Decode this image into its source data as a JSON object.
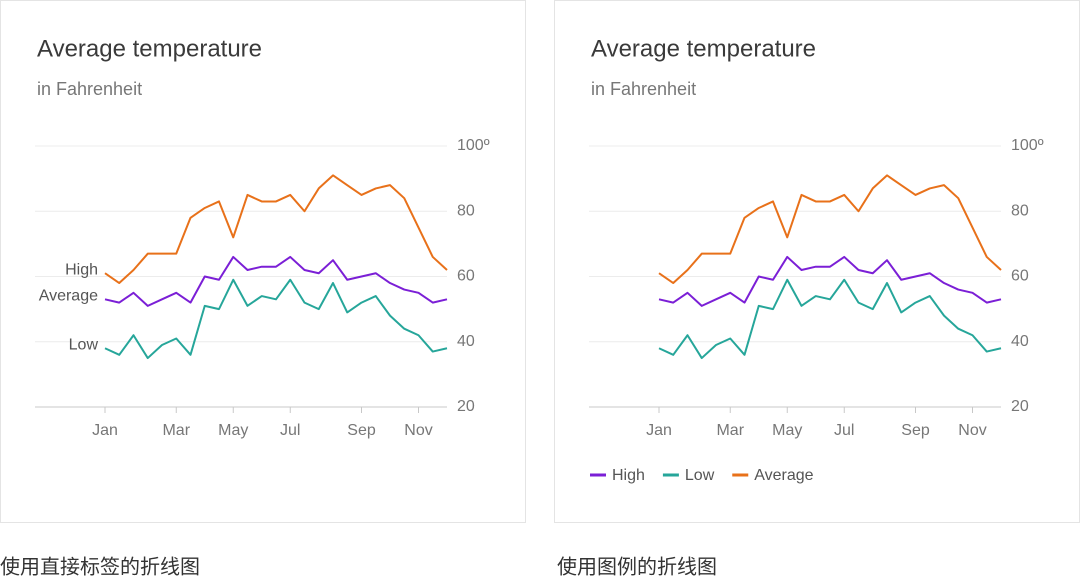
{
  "chart_data": [
    {
      "type": "line",
      "title": "Average temperature",
      "subtitle": "in Fahrenheit",
      "caption": "使用直接标签的折线图",
      "labeling": "direct",
      "categories": [
        "Jan",
        null,
        null,
        null,
        null,
        "Mar",
        null,
        null,
        null,
        "May",
        null,
        null,
        null,
        "Jul",
        null,
        null,
        null,
        null,
        "Sep",
        null,
        null,
        null,
        "Nov",
        null,
        null
      ],
      "series": [
        {
          "name": "High",
          "color": "#7b1fd6",
          "values": [
            53,
            52,
            55,
            51,
            53,
            55,
            52,
            60,
            59,
            66,
            62,
            63,
            63,
            66,
            62,
            61,
            65,
            59,
            60,
            61,
            58,
            56,
            55,
            52,
            53
          ]
        },
        {
          "name": "Average",
          "color": "#e8711a",
          "values": [
            61,
            58,
            62,
            67,
            67,
            67,
            78,
            81,
            83,
            72,
            85,
            83,
            83,
            85,
            80,
            87,
            91,
            88,
            85,
            87,
            88,
            84,
            75,
            66,
            62
          ]
        },
        {
          "name": "Low",
          "color": "#26a69a",
          "values": [
            38,
            36,
            42,
            35,
            39,
            41,
            36,
            51,
            50,
            59,
            51,
            54,
            53,
            59,
            52,
            50,
            58,
            49,
            52,
            54,
            48,
            44,
            42,
            37,
            38
          ]
        }
      ],
      "ylim": [
        20,
        100
      ],
      "yticks": [
        20,
        40,
        60,
        80,
        {
          "value": 100,
          "label": "100º"
        }
      ],
      "grid": true
    },
    {
      "type": "line",
      "title": "Average temperature",
      "subtitle": "in Fahrenheit",
      "caption": "使用图例的折线图",
      "labeling": "legend",
      "legend": "bottom",
      "categories": [
        "Jan",
        null,
        null,
        null,
        null,
        "Mar",
        null,
        null,
        null,
        "May",
        null,
        null,
        null,
        "Jul",
        null,
        null,
        null,
        null,
        "Sep",
        null,
        null,
        null,
        "Nov",
        null,
        null
      ],
      "series": [
        {
          "name": "High",
          "color": "#7b1fd6",
          "values": [
            53,
            52,
            55,
            51,
            53,
            55,
            52,
            60,
            59,
            66,
            62,
            63,
            63,
            66,
            62,
            61,
            65,
            59,
            60,
            61,
            58,
            56,
            55,
            52,
            53
          ]
        },
        {
          "name": "Low",
          "color": "#26a69a",
          "values": [
            38,
            36,
            42,
            35,
            39,
            41,
            36,
            51,
            50,
            59,
            51,
            54,
            53,
            59,
            52,
            50,
            58,
            49,
            52,
            54,
            48,
            44,
            42,
            37,
            38
          ]
        },
        {
          "name": "Average",
          "color": "#e8711a",
          "values": [
            61,
            58,
            62,
            67,
            67,
            67,
            78,
            81,
            83,
            72,
            85,
            83,
            83,
            85,
            80,
            87,
            91,
            88,
            85,
            87,
            88,
            84,
            75,
            66,
            62
          ]
        }
      ],
      "ylim": [
        20,
        100
      ],
      "yticks": [
        20,
        40,
        60,
        80,
        {
          "value": 100,
          "label": "100º"
        }
      ],
      "grid": true
    }
  ]
}
